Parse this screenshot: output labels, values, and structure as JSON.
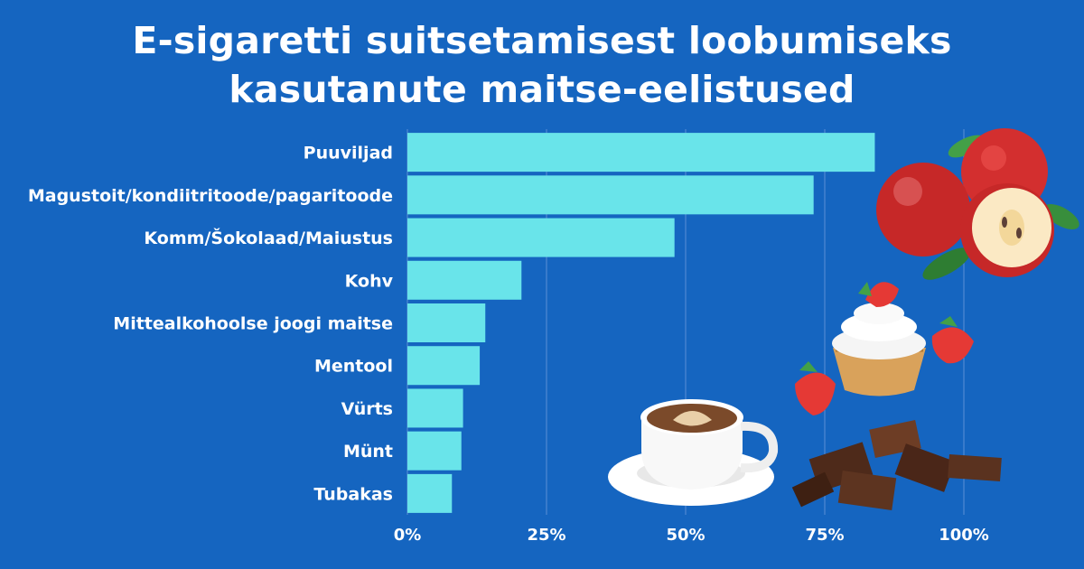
{
  "title_lines": [
    "E-sigaretti suitsetamisest loobumiseks",
    "kasutanute maitse-eelistused"
  ],
  "chart_data": {
    "type": "bar",
    "orientation": "horizontal",
    "title": "E-sigaretti suitsetamisest loobumiseks kasutanute maitse-eelistused",
    "categories": [
      "Puuviljad",
      "Magustoit/kondiitritoode/pagaritoode",
      "Komm/Šokolaad/Maiustus",
      "Kohv",
      "Mittealkohoolse joogi maitse",
      "Mentool",
      "Vürts",
      "Münt",
      "Tubakas"
    ],
    "values": [
      84,
      73,
      48,
      20.5,
      14,
      13,
      10,
      9.7,
      8
    ],
    "xlim": [
      0,
      100
    ],
    "x_ticks": [
      0,
      25,
      50,
      75,
      100
    ],
    "x_tick_labels": [
      "0%",
      "25%",
      "50%",
      "75%",
      "100%"
    ],
    "grid": true,
    "bar_color": "#69e4ea",
    "grid_color": "#5b8fd6",
    "background_color": "#1565c0"
  },
  "illustrations": [
    "apples-icon",
    "cupcake-strawberries-icon",
    "coffee-cup-icon",
    "chocolate-pieces-icon"
  ]
}
